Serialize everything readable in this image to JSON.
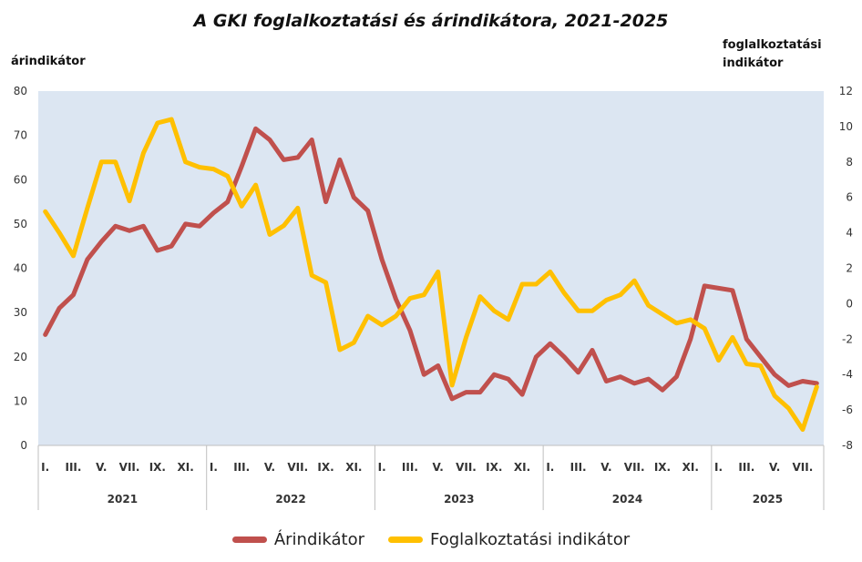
{
  "chart_data": {
    "type": "line",
    "title": "A GKI foglalkoztatási és árindikátora, 2021-2025",
    "ylabel_left": "árindikátor",
    "ylabel_right": "foglalkoztatási indikátor",
    "ylim_left": [
      0,
      80
    ],
    "yticks_left": [
      "0",
      "10",
      "20",
      "30",
      "40",
      "50",
      "60",
      "70",
      "80"
    ],
    "ylim_right": [
      -8,
      12
    ],
    "yticks_right": [
      "-8",
      "-6",
      "-4",
      "-2",
      "0",
      "2",
      "4",
      "6",
      "8",
      "10",
      "12"
    ],
    "month_labels": [
      "I.",
      "III.",
      "V.",
      "VII.",
      "IX.",
      "XI.",
      "I.",
      "III.",
      "V.",
      "VII.",
      "IX.",
      "XI.",
      "I.",
      "III.",
      "V.",
      "VII.",
      "IX.",
      "XI.",
      "I.",
      "III.",
      "V.",
      "VII.",
      "IX.",
      "XI.",
      "I.",
      "III.",
      "V.",
      "VII."
    ],
    "years": [
      "2021",
      "2022",
      "2023",
      "2024",
      "2025"
    ],
    "grid": false,
    "legend_position": "bottom",
    "series": [
      {
        "name": "Árindikátor",
        "axis": "left",
        "color": "#C0504D",
        "values": [
          25,
          31,
          34,
          42,
          46,
          49.5,
          48.5,
          49.5,
          44,
          45,
          50,
          49.5,
          52.5,
          55,
          63,
          71.5,
          69,
          64.5,
          65,
          69,
          55,
          64.5,
          56,
          53,
          42,
          33,
          26,
          16,
          18,
          10.5,
          12,
          12,
          16,
          15,
          11.5,
          20,
          23,
          20,
          16.5,
          21.5,
          14.5,
          15.5,
          14,
          15,
          12.5,
          15.5,
          24,
          36,
          35.5,
          35,
          24,
          20,
          16,
          13.5,
          14.5,
          14
        ]
      },
      {
        "name": "Foglalkoztatási indikátor",
        "axis": "right",
        "color": "#FFC000",
        "values": [
          5.2,
          4,
          2.7,
          5.4,
          8,
          8,
          5.8,
          8.5,
          10.2,
          10.4,
          8,
          7.7,
          7.6,
          7.2,
          5.5,
          6.7,
          3.9,
          4.4,
          5.4,
          1.6,
          1.2,
          -2.6,
          -2.2,
          -0.7,
          -1.2,
          -0.7,
          0.3,
          0.5,
          1.8,
          -4.6,
          -1.9,
          0.4,
          -0.4,
          -0.9,
          1.1,
          1.1,
          1.8,
          0.6,
          -0.4,
          -0.4,
          0.2,
          0.5,
          1.3,
          -0.1,
          -0.6,
          -1.1,
          -0.9,
          -1.4,
          -3.2,
          -1.9,
          -3.4,
          -3.5,
          -5.2,
          -5.9,
          -7.1,
          -4.7
        ]
      }
    ]
  }
}
